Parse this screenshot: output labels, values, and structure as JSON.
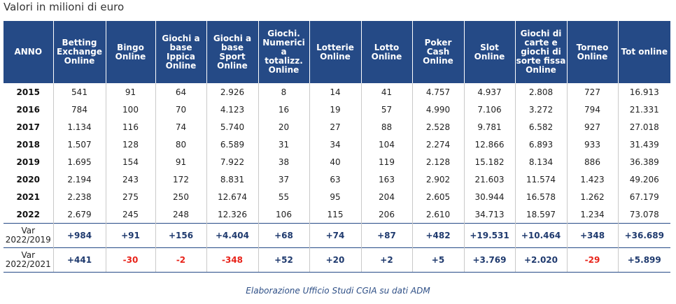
{
  "subtitle": "Valori in milioni di euro",
  "headers": [
    "ANNO",
    "Betting\nExchange\nOnline",
    "Bingo\nOnline",
    "Giochi a\nbase\nIppica\nOnline",
    "Giochi a\nbase Sport\nOnline",
    "Giochi.\nNumerici a\ntotalizz.\nOnline",
    "Lotterie\nOnline",
    "Lotto\nOnline",
    "Poker\nCash\nOnline",
    "Slot Online",
    "Giochi di\ncarte e\ngiochi di\nsorte fissa\nOnline",
    "Torneo\nOnline",
    "Tot online"
  ],
  "rows": [
    [
      "2015",
      "541",
      "91",
      "64",
      "2.926",
      "8",
      "14",
      "41",
      "4.757",
      "4.937",
      "2.808",
      "727",
      "16.913"
    ],
    [
      "2016",
      "784",
      "100",
      "70",
      "4.123",
      "16",
      "19",
      "57",
      "4.990",
      "7.106",
      "3.272",
      "794",
      "21.331"
    ],
    [
      "2017",
      "1.134",
      "116",
      "74",
      "5.740",
      "20",
      "27",
      "88",
      "2.528",
      "9.781",
      "6.582",
      "927",
      "27.018"
    ],
    [
      "2018",
      "1.507",
      "128",
      "80",
      "6.589",
      "31",
      "34",
      "104",
      "2.274",
      "12.866",
      "6.893",
      "933",
      "31.439"
    ],
    [
      "2019",
      "1.695",
      "154",
      "91",
      "7.922",
      "38",
      "40",
      "119",
      "2.128",
      "15.182",
      "8.134",
      "886",
      "36.389"
    ],
    [
      "2020",
      "2.194",
      "243",
      "172",
      "8.831",
      "37",
      "63",
      "163",
      "2.902",
      "21.603",
      "11.574",
      "1.423",
      "49.206"
    ],
    [
      "2021",
      "2.238",
      "275",
      "250",
      "12.674",
      "55",
      "95",
      "204",
      "2.605",
      "30.944",
      "16.578",
      "1.262",
      "67.179"
    ],
    [
      "2022",
      "2.679",
      "245",
      "248",
      "12.326",
      "106",
      "115",
      "206",
      "2.610",
      "34.713",
      "18.597",
      "1.234",
      "73.078"
    ]
  ],
  "variations": [
    {
      "label": "Var\n2022/2019",
      "values": [
        "+984",
        "+91",
        "+156",
        "+4.404",
        "+68",
        "+74",
        "+87",
        "+482",
        "+19.531",
        "+10.464",
        "+348",
        "+36.689"
      ]
    },
    {
      "label": "Var\n2022/2021",
      "values": [
        "+441",
        "-30",
        "-2",
        "-348",
        "+52",
        "+20",
        "+2",
        "+5",
        "+3.769",
        "+2.020",
        "-29",
        "+5.899"
      ]
    }
  ],
  "colors": {
    "header_bg": "#254a86",
    "positive": "#1f3a6e",
    "negative": "#e8231a"
  },
  "source": "Elaborazione Ufficio Studi CGIA su dati ADM"
}
